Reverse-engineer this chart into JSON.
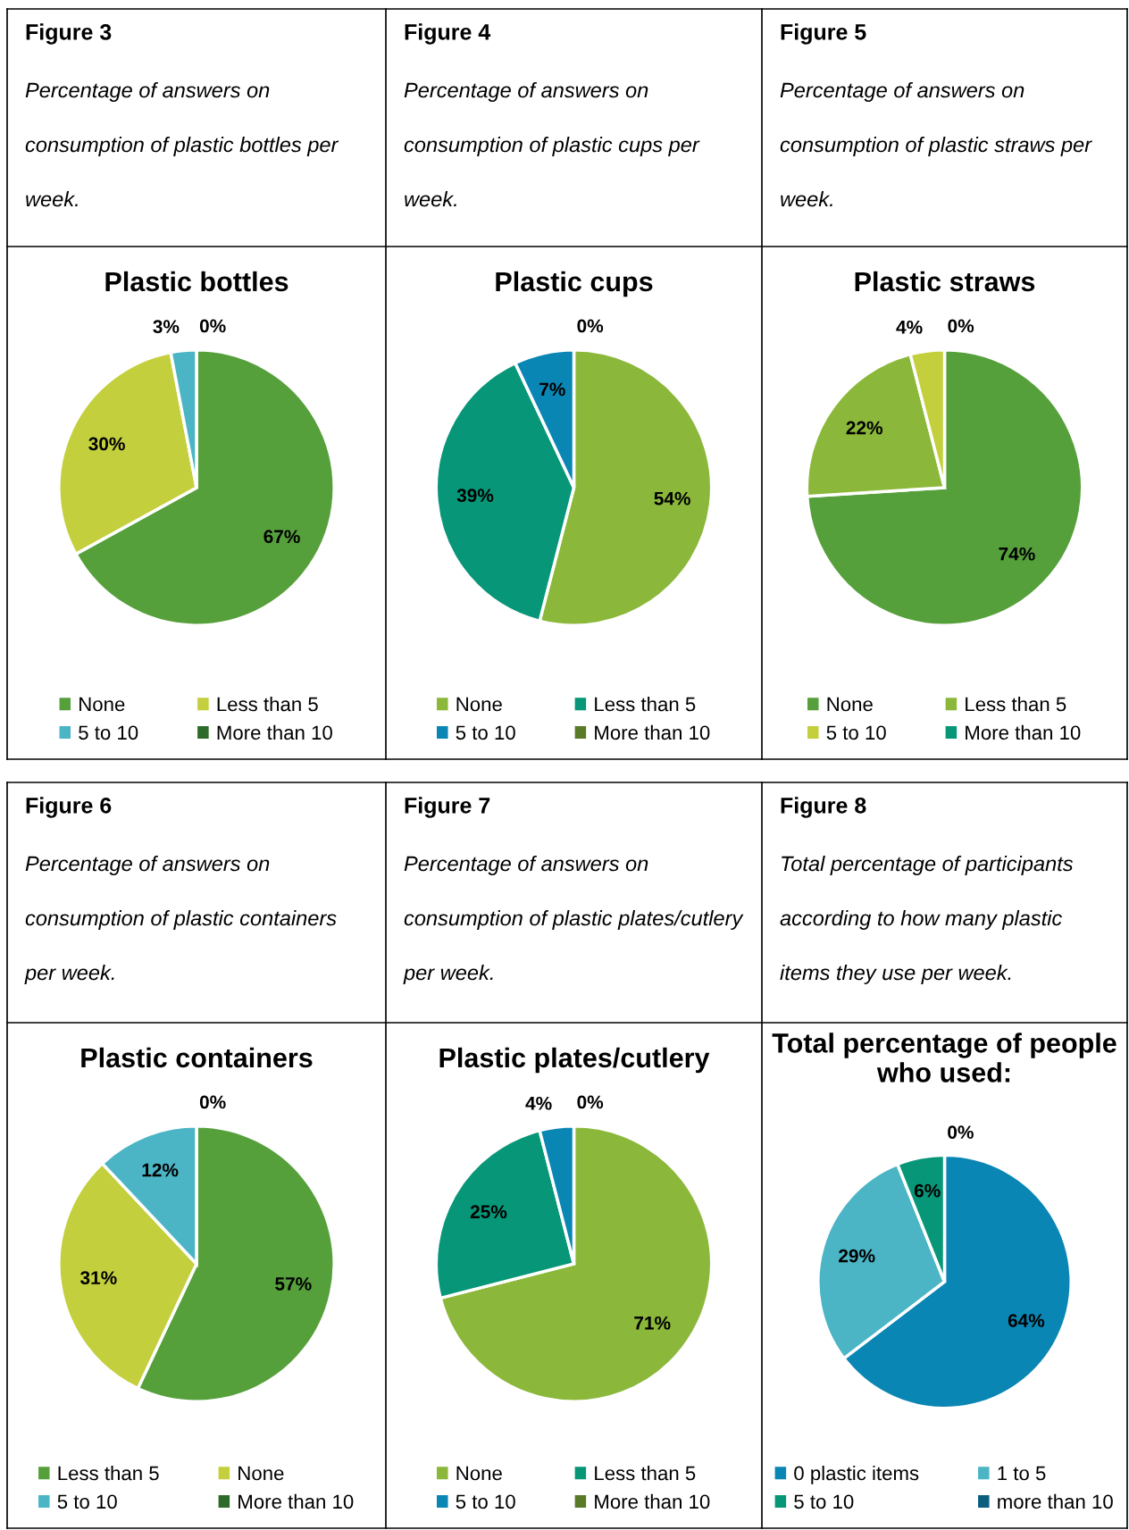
{
  "chart_data": [
    {
      "type": "pie",
      "title": "Plastic bottles",
      "annotations": [
        "Figure 3",
        "Percentage of answers on consumption of plastic bottles per week."
      ],
      "categories": [
        "None",
        "Less than 5",
        "5 to 10",
        "More than 10"
      ],
      "values": [
        67,
        30,
        3,
        0
      ],
      "value_labels": [
        "67%",
        "30%",
        "3%",
        "0%"
      ],
      "colors": [
        "#56a03c",
        "#c3cf3c",
        "#4bb5c5",
        "#2e6b2a"
      ],
      "legend": "bottom"
    },
    {
      "type": "pie",
      "title": "Plastic cups",
      "annotations": [
        "Figure 4",
        "Percentage of answers on consumption of plastic cups per week."
      ],
      "categories": [
        "None",
        "Less than 5",
        "5 to 10",
        "More than 10"
      ],
      "values": [
        54,
        39,
        7,
        0
      ],
      "value_labels": [
        "54%",
        "39%",
        "7%",
        "0%"
      ],
      "colors": [
        "#8bb83a",
        "#079678",
        "#0a86b4",
        "#5a7a28"
      ],
      "legend": "bottom"
    },
    {
      "type": "pie",
      "title": "Plastic straws",
      "annotations": [
        "Figure 5",
        "Percentage of answers on consumption of plastic straws per week."
      ],
      "categories": [
        "None",
        "Less than 5",
        "5 to 10",
        "More than 10"
      ],
      "values": [
        74,
        22,
        4,
        0
      ],
      "value_labels": [
        "74%",
        "22%",
        "4%",
        "0%"
      ],
      "colors": [
        "#56a03c",
        "#8bb83a",
        "#c3cf3c",
        "#079678"
      ],
      "legend": "bottom"
    },
    {
      "type": "pie",
      "title": "Plastic containers",
      "annotations": [
        "Figure 6",
        "Percentage of answers on consumption of plastic containers per week."
      ],
      "categories": [
        "Less than 5",
        "None",
        "5 to 10",
        "More than 10"
      ],
      "values": [
        57,
        31,
        12,
        0
      ],
      "value_labels": [
        "57%",
        "31%",
        "12%",
        "0%"
      ],
      "colors": [
        "#56a03c",
        "#c3cf3c",
        "#4bb5c5",
        "#2e6b2a"
      ],
      "legend": "bottom"
    },
    {
      "type": "pie",
      "title": "Plastic plates/cutlery",
      "annotations": [
        "Figure 7",
        "Percentage of answers on consumption of plastic plates/cutlery per week."
      ],
      "categories": [
        "None",
        "Less than 5",
        "5 to 10",
        "More than 10"
      ],
      "values": [
        71,
        25,
        4,
        0
      ],
      "value_labels": [
        "71%",
        "25%",
        "4%",
        "0%"
      ],
      "colors": [
        "#8bb83a",
        "#079678",
        "#0a86b4",
        "#5a7a28"
      ],
      "legend": "bottom"
    },
    {
      "type": "pie",
      "title": "Total percentage of people who used:",
      "annotations": [
        "Figure 8",
        "Total percentage of participants according to how many plastic items they use per week."
      ],
      "categories": [
        "0 plastic items",
        "1 to 5",
        "5 to 10",
        "more than 10"
      ],
      "values": [
        64,
        29,
        6,
        0
      ],
      "value_labels": [
        "64%",
        "29%",
        "6%",
        "0%"
      ],
      "colors": [
        "#0a86b4",
        "#4bb5c5",
        "#079678",
        "#0b5e7e"
      ],
      "legend": "bottom"
    }
  ]
}
